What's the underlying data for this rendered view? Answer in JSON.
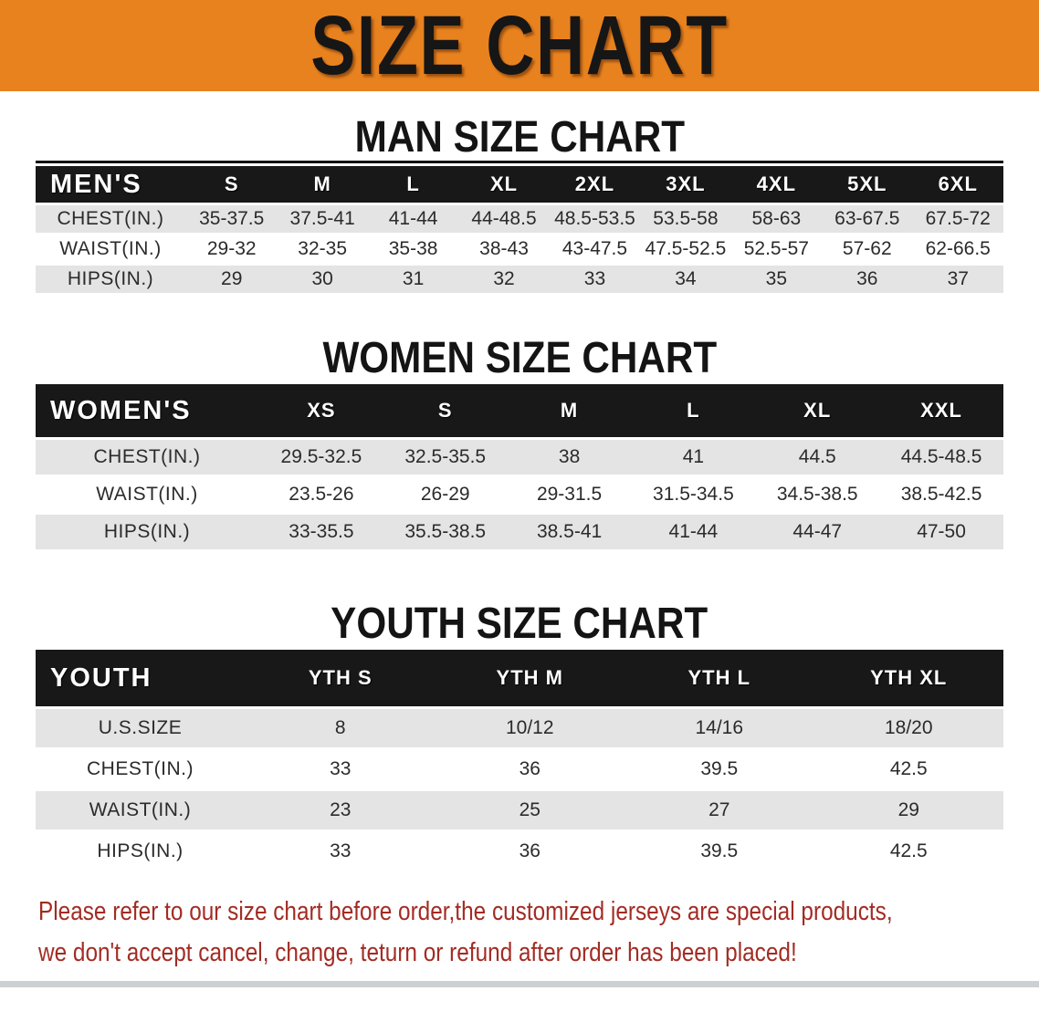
{
  "banner": {
    "title": "SIZE CHART"
  },
  "colors": {
    "banner_bg": "#E8821E",
    "banner_text": "#161616",
    "table_header_bg": "#181818",
    "row_stripe": "#E4E4E4",
    "footer_text": "#A22C24"
  },
  "sections": [
    {
      "title": "MAN SIZE CHART",
      "header_label": "MEN'S",
      "columns": [
        "S",
        "M",
        "L",
        "XL",
        "2XL",
        "3XL",
        "4XL",
        "5XL",
        "6XL"
      ],
      "rows": [
        {
          "label": "CHEST(IN.)",
          "values": [
            "35-37.5",
            "37.5-41",
            "41-44",
            "44-48.5",
            "48.5-53.5",
            "53.5-58",
            "58-63",
            "63-67.5",
            "67.5-72"
          ]
        },
        {
          "label": "WAIST(IN.)",
          "values": [
            "29-32",
            "32-35",
            "35-38",
            "38-43",
            "43-47.5",
            "47.5-52.5",
            "52.5-57",
            "57-62",
            "62-66.5"
          ]
        },
        {
          "label": "HIPS(IN.)",
          "values": [
            "29",
            "30",
            "31",
            "32",
            "33",
            "34",
            "35",
            "36",
            "37"
          ]
        }
      ]
    },
    {
      "title": "WOMEN SIZE CHART",
      "header_label": "WOMEN'S",
      "columns": [
        "XS",
        "S",
        "M",
        "L",
        "XL",
        "XXL"
      ],
      "rows": [
        {
          "label": "CHEST(IN.)",
          "values": [
            "29.5-32.5",
            "32.5-35.5",
            "38",
            "41",
            "44.5",
            "44.5-48.5"
          ]
        },
        {
          "label": "WAIST(IN.)",
          "values": [
            "23.5-26",
            "26-29",
            "29-31.5",
            "31.5-34.5",
            "34.5-38.5",
            "38.5-42.5"
          ]
        },
        {
          "label": "HIPS(IN.)",
          "values": [
            "33-35.5",
            "35.5-38.5",
            "38.5-41",
            "41-44",
            "44-47",
            "47-50"
          ]
        }
      ]
    },
    {
      "title": "YOUTH SIZE CHART",
      "header_label": "YOUTH",
      "columns": [
        "YTH S",
        "YTH M",
        "YTH L",
        "YTH XL"
      ],
      "rows": [
        {
          "label": "U.S.SIZE",
          "values": [
            "8",
            "10/12",
            "14/16",
            "18/20"
          ]
        },
        {
          "label": "CHEST(IN.)",
          "values": [
            "33",
            "36",
            "39.5",
            "42.5"
          ]
        },
        {
          "label": "WAIST(IN.)",
          "values": [
            "23",
            "25",
            "27",
            "29"
          ]
        },
        {
          "label": "HIPS(IN.)",
          "values": [
            "33",
            "36",
            "39.5",
            "42.5"
          ]
        }
      ]
    }
  ],
  "footer": {
    "line1": "Please refer to our size chart before order,the customized jerseys are special products,",
    "line2": "we don't accept cancel, change, teturn or refund after order has been placed!"
  }
}
